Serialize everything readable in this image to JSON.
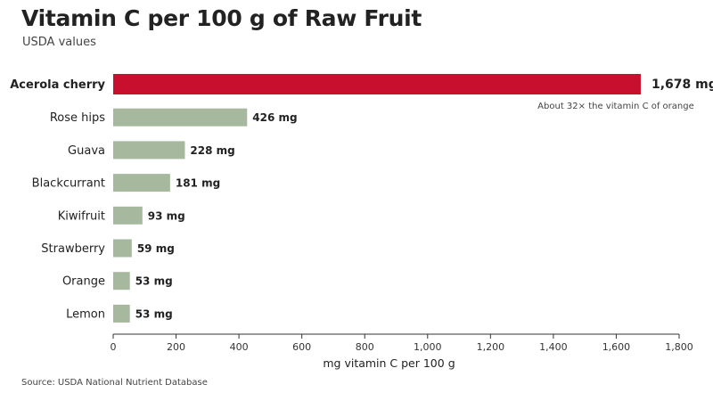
{
  "header": {
    "title": "Vitamin C per 100 g of Raw Fruit",
    "subtitle": "USDA values"
  },
  "footer": {
    "source": "Source: USDA National Nutrient Database"
  },
  "colors": {
    "highlight": "#C8102E",
    "bar": "#A6B99E",
    "axis": "#333333"
  },
  "chart_data": {
    "type": "bar",
    "orientation": "horizontal",
    "categories": [
      "Acerola cherry",
      "Rose hips",
      "Guava",
      "Blackcurrant",
      "Kiwifruit",
      "Strawberry",
      "Orange",
      "Lemon"
    ],
    "values": [
      1678,
      426,
      228,
      181,
      93,
      59,
      53,
      53
    ],
    "value_labels": [
      "1,678 mg",
      "426 mg",
      "228 mg",
      "181 mg",
      "93 mg",
      "59 mg",
      "53 mg",
      "53 mg"
    ],
    "highlight_category": "Acerola cherry",
    "annotation": "About 32× the vitamin C of orange",
    "xlabel": "mg vitamin C per 100 g",
    "xlim": [
      0,
      1800
    ],
    "xticks": [
      0,
      200,
      400,
      600,
      800,
      1000,
      1200,
      1400,
      1600,
      1800
    ],
    "xtick_labels": [
      "0",
      "200",
      "400",
      "600",
      "800",
      "1,000",
      "1,200",
      "1,400",
      "1,600",
      "1,800"
    ],
    "grid": false
  }
}
